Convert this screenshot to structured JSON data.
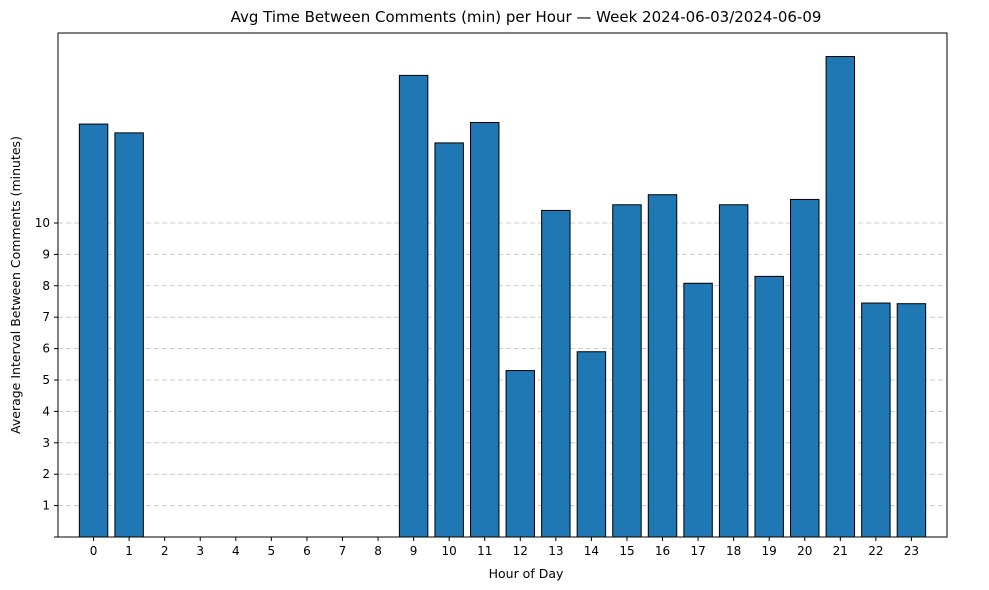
{
  "chart_data": {
    "type": "bar",
    "title": "Avg Time Between Comments (min) per Hour — Week 2024-06-03/2024-06-09",
    "xlabel": "Hour of Day",
    "ylabel": "Average Interval Between Comments (minutes)",
    "categories": [
      "0",
      "1",
      "2",
      "3",
      "4",
      "5",
      "6",
      "7",
      "8",
      "9",
      "10",
      "11",
      "12",
      "13",
      "14",
      "15",
      "16",
      "17",
      "18",
      "19",
      "20",
      "21",
      "22",
      "23"
    ],
    "values": [
      13.15,
      12.87,
      0,
      0,
      0,
      0,
      0,
      0,
      0,
      14.7,
      12.55,
      13.2,
      5.3,
      10.4,
      5.9,
      10.58,
      10.9,
      8.08,
      10.58,
      8.3,
      10.75,
      15.3,
      7.45,
      7.43
    ],
    "ylim": [
      0,
      16.05
    ],
    "yticks": [
      1,
      2,
      3,
      4,
      5,
      6,
      7,
      8,
      9,
      10
    ],
    "grid": "y-axis, dashed",
    "bar_color": "#1f77b4",
    "bar_edge_color": "#000000"
  }
}
